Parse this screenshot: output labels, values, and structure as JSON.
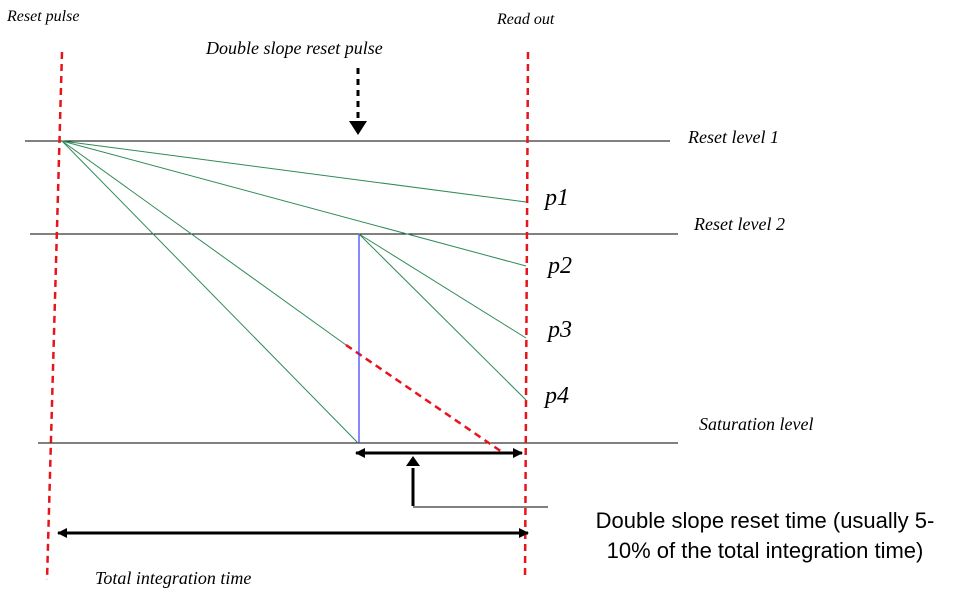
{
  "labels": {
    "reset_pulse": "Reset pulse",
    "read_out": "Read out",
    "double_slope_reset_pulse": "Double slope reset pulse",
    "reset_level_1": "Reset level 1",
    "reset_level_2": "Reset level 2",
    "saturation_level": "Saturation level",
    "total_integration_time": "Total integration time",
    "double_slope_reset_time_line1": "Double slope reset time (usually 5-",
    "double_slope_reset_time_line2": "10% of the total integration time)"
  },
  "pixel_outputs": [
    "p1",
    "p2",
    "p3",
    "p4"
  ],
  "colors": {
    "pulse_marker": "#e8141c",
    "integration_ramp": "#2e8b57",
    "reset_drop": "#3b3bff",
    "level_line": "#000000"
  }
}
